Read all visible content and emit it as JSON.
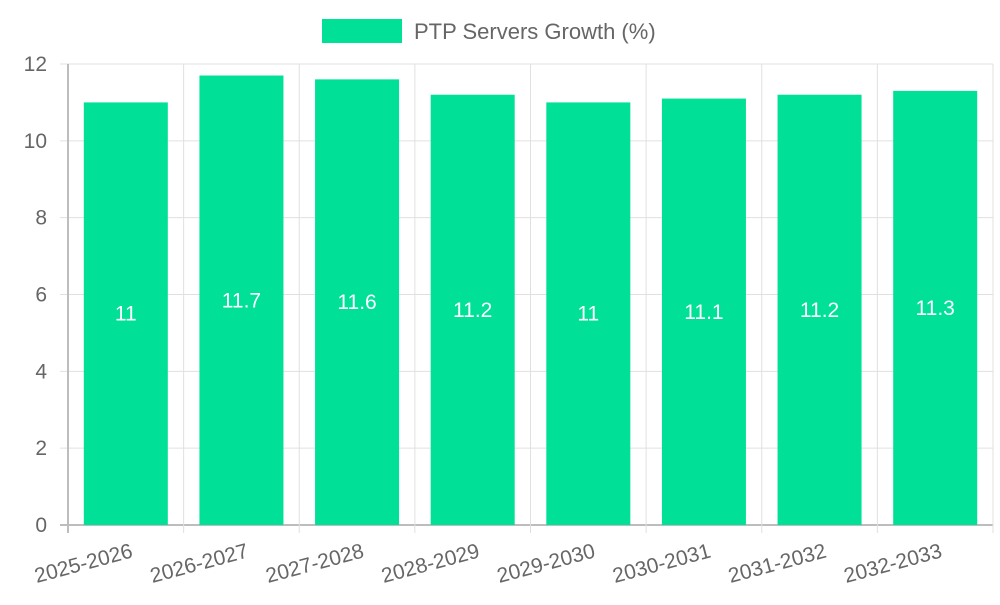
{
  "legend": {
    "label": "PTP Servers Growth (%)",
    "position": "top-center"
  },
  "colors": {
    "bar": "#00e096",
    "grid": "#e0e0e0",
    "axis": "#bdbdbd",
    "text": "#666666",
    "data_label": "#ffffff"
  },
  "chart_data": {
    "type": "bar",
    "categories": [
      "2025-2026",
      "2026-2027",
      "2027-2028",
      "2028-2029",
      "2029-2030",
      "2030-2031",
      "2031-2032",
      "2032-2033"
    ],
    "series": [
      {
        "name": "PTP Servers Growth (%)",
        "values": [
          11,
          11.7,
          11.6,
          11.2,
          11,
          11.1,
          11.2,
          11.3
        ]
      }
    ],
    "data_labels": [
      "11",
      "11.7",
      "11.6",
      "11.2",
      "11",
      "11.1",
      "11.2",
      "11.3"
    ],
    "title": "",
    "xlabel": "",
    "ylabel": "",
    "ylim": [
      0,
      12
    ],
    "yticks": [
      0,
      2,
      4,
      6,
      8,
      10,
      12
    ],
    "grid": true,
    "legend_position": "top-center"
  }
}
